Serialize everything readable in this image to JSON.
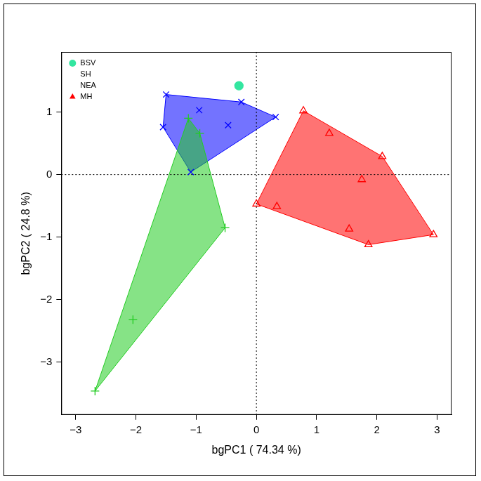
{
  "chart_data": {
    "type": "scatter",
    "x_label": "bgPC1 ( 74.34 %)",
    "y_label": "bgPC2 ( 24.8 %)",
    "xlim": [
      -3.24,
      3.24
    ],
    "ylim": [
      -3.84,
      1.96
    ],
    "xticks": [
      -3,
      -2,
      -1,
      0,
      1,
      2,
      3
    ],
    "yticks": [
      -3,
      -2,
      -1,
      0,
      1
    ],
    "grid": false,
    "legend": "top-left",
    "series": [
      {
        "name": "BSV",
        "color": "#33e6a0",
        "marker": "circle",
        "x": [
          -0.29
        ],
        "values": [
          1.42
        ]
      },
      {
        "name": "SH",
        "color": "#0000ff",
        "marker": "cross",
        "x": [
          -1.55,
          -1.5,
          -0.95,
          -1.09,
          -0.47,
          -0.25,
          0.32
        ],
        "values": [
          0.76,
          1.28,
          1.03,
          0.04,
          0.79,
          1.16,
          0.92
        ]
      },
      {
        "name": "NEA",
        "color": "#22cc22",
        "marker": "plus",
        "x": [
          -1.13,
          -0.94,
          -0.52,
          -2.05,
          -2.68
        ],
        "values": [
          0.9,
          0.66,
          -0.85,
          -2.32,
          -3.46
        ]
      },
      {
        "name": "MH",
        "color": "#ff0000",
        "marker": "triangle",
        "x": [
          0.0,
          0.34,
          0.78,
          1.21,
          2.09,
          1.75,
          1.54,
          1.86,
          2.94
        ],
        "values": [
          -0.47,
          -0.51,
          1.02,
          0.66,
          0.29,
          -0.08,
          -0.87,
          -1.12,
          -0.96
        ]
      }
    ]
  }
}
